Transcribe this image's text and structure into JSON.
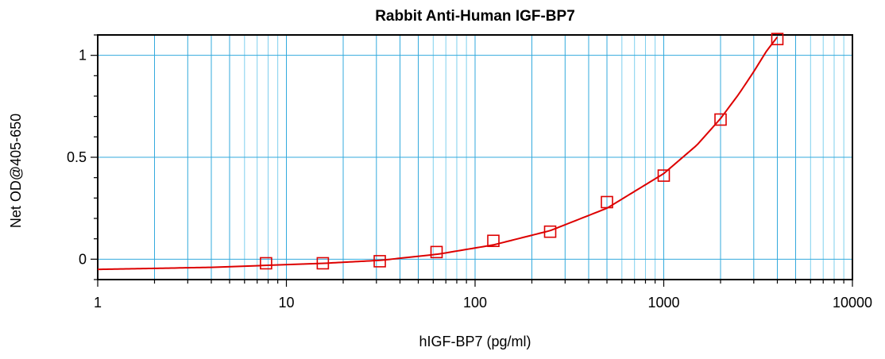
{
  "chart_data": {
    "type": "scatter",
    "title": "Rabbit Anti-Human IGF-BP7",
    "xlabel": "hIGF-BP7 (pg/ml)",
    "ylabel": "Net OD@405-650",
    "x_scale": "log",
    "xlim": [
      1,
      10000
    ],
    "ylim": [
      -0.1,
      1.1
    ],
    "x_ticks": [
      {
        "value": 1,
        "label": "1"
      },
      {
        "value": 10,
        "label": "10"
      },
      {
        "value": 100,
        "label": "100"
      },
      {
        "value": 1000,
        "label": "1000"
      },
      {
        "value": 10000,
        "label": "10000"
      }
    ],
    "y_ticks": [
      {
        "value": 0,
        "label": "0"
      },
      {
        "value": 0.5,
        "label": "0.5"
      },
      {
        "value": 1,
        "label": "1"
      }
    ],
    "grid": true,
    "series": [
      {
        "marker": "square",
        "color": "#dd0000",
        "x": [
          7.8,
          15.6,
          31.25,
          62.5,
          125,
          250,
          500,
          1000,
          2000,
          4000
        ],
        "y": [
          -0.02,
          -0.02,
          -0.01,
          0.035,
          0.09,
          0.135,
          0.28,
          0.41,
          0.685,
          1.08
        ]
      }
    ],
    "fit_curve": {
      "color": "#dd0000",
      "x": [
        1,
        2,
        4,
        8,
        16,
        32,
        64,
        125,
        250,
        500,
        1000,
        1500,
        2000,
        2500,
        3000,
        3500,
        4000
      ],
      "y": [
        -0.05,
        -0.045,
        -0.04,
        -0.03,
        -0.02,
        -0.005,
        0.025,
        0.07,
        0.14,
        0.25,
        0.42,
        0.56,
        0.69,
        0.81,
        0.92,
        1.02,
        1.09
      ]
    },
    "colors": {
      "grid": "#33aadd",
      "grid_minor": "#7fd0ee",
      "axes": "#000000",
      "series": "#dd0000"
    }
  }
}
